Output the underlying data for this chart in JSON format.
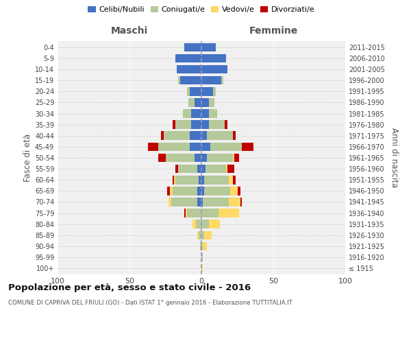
{
  "age_groups": [
    "100+",
    "95-99",
    "90-94",
    "85-89",
    "80-84",
    "75-79",
    "70-74",
    "65-69",
    "60-64",
    "55-59",
    "50-54",
    "45-49",
    "40-44",
    "35-39",
    "30-34",
    "25-29",
    "20-24",
    "15-19",
    "10-14",
    "5-9",
    "0-4"
  ],
  "birth_years": [
    "≤ 1915",
    "1916-1920",
    "1921-1925",
    "1926-1930",
    "1931-1935",
    "1936-1940",
    "1941-1945",
    "1946-1950",
    "1951-1955",
    "1956-1960",
    "1961-1965",
    "1966-1970",
    "1971-1975",
    "1976-1980",
    "1981-1985",
    "1986-1990",
    "1991-1995",
    "1996-2000",
    "2001-2005",
    "2006-2010",
    "2011-2015"
  ],
  "maschi": {
    "celibi": [
      0,
      0,
      0,
      0,
      0,
      0,
      3,
      3,
      2,
      3,
      5,
      8,
      8,
      7,
      7,
      5,
      8,
      15,
      17,
      18,
      12
    ],
    "coniugati": [
      0,
      0,
      1,
      2,
      4,
      10,
      18,
      17,
      16,
      13,
      20,
      22,
      18,
      11,
      6,
      4,
      2,
      1,
      0,
      0,
      0
    ],
    "vedovi": [
      0,
      0,
      0,
      1,
      2,
      1,
      2,
      2,
      1,
      0,
      0,
      0,
      0,
      0,
      0,
      0,
      0,
      0,
      0,
      0,
      0
    ],
    "divorziati": [
      0,
      0,
      0,
      0,
      0,
      1,
      0,
      2,
      1,
      2,
      5,
      7,
      2,
      2,
      0,
      0,
      0,
      0,
      0,
      0,
      0
    ]
  },
  "femmine": {
    "nubili": [
      0,
      0,
      0,
      0,
      0,
      0,
      1,
      2,
      2,
      3,
      4,
      6,
      4,
      5,
      5,
      5,
      8,
      14,
      18,
      17,
      10
    ],
    "coniugate": [
      0,
      1,
      1,
      2,
      5,
      12,
      18,
      18,
      17,
      14,
      18,
      22,
      18,
      11,
      6,
      4,
      2,
      1,
      0,
      0,
      0
    ],
    "vedove": [
      1,
      0,
      3,
      5,
      8,
      14,
      8,
      5,
      3,
      1,
      1,
      0,
      0,
      0,
      0,
      0,
      0,
      0,
      0,
      0,
      0
    ],
    "divorziate": [
      0,
      0,
      0,
      0,
      0,
      0,
      1,
      2,
      2,
      5,
      3,
      8,
      2,
      2,
      0,
      0,
      0,
      0,
      0,
      0,
      0
    ]
  },
  "colors": {
    "celibi": "#4472c4",
    "coniugati": "#b5c99a",
    "vedovi": "#ffd966",
    "divorziati": "#c00000"
  },
  "xlim": 100,
  "title": "Popolazione per età, sesso e stato civile - 2016",
  "subtitle": "COMUNE DI CAPRIVA DEL FRIULI (GO) - Dati ISTAT 1° gennaio 2016 - Elaborazione TUTTITALIA.IT",
  "xlabel_left": "Maschi",
  "xlabel_right": "Femmine",
  "ylabel_left": "Fasce di età",
  "ylabel_right": "Anni di nascita",
  "bg_color": "#f0f0f0",
  "grid_color": "#cccccc",
  "legend_labels": [
    "Celibi/Nubili",
    "Coniugati/e",
    "Vedovi/e",
    "Divorziati/e"
  ]
}
